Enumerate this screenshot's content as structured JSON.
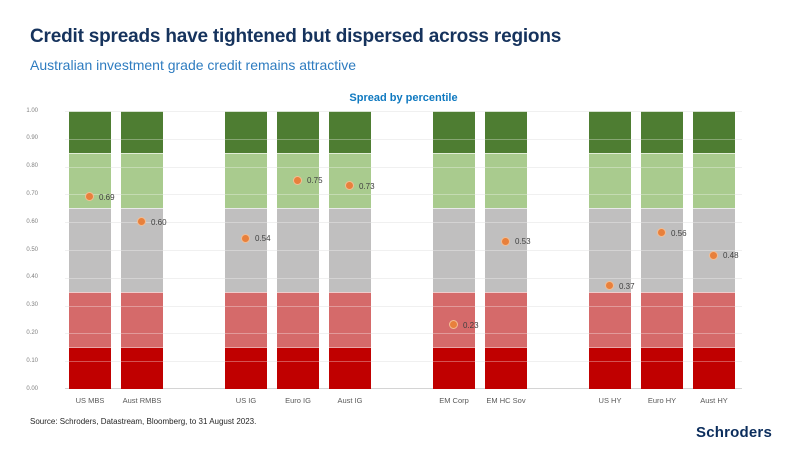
{
  "header": {
    "title": "Credit spreads have tightened but dispersed across regions",
    "subtitle": "Australian investment grade credit remains attractive"
  },
  "theme": {
    "title_color": "#16335d",
    "subtitle_color": "#2e7cc0",
    "chart_title_color": "#0f79c0",
    "logo_color": "#0b2d5c",
    "marker_color": "#e8803c",
    "marker_ring_color": "#f4bd92",
    "band_dark_red": "#c00000",
    "band_light_red": "#d56a6a",
    "band_gray": "#c0bfbf",
    "band_light_green": "#a9cb8e",
    "band_dark_green": "#4e7d32"
  },
  "chart_data": {
    "type": "bar",
    "variant": "stacked-percentile-bands-with-markers",
    "title": "Spread by percentile",
    "ylim": [
      0,
      1
    ],
    "ytick_labels": [
      "0.00",
      "0.10",
      "0.20",
      "0.30",
      "0.40",
      "0.50",
      "0.60",
      "0.70",
      "0.80",
      "0.90",
      "1.00"
    ],
    "grid": true,
    "legend": "none",
    "bands": [
      {
        "from": 0.0,
        "to": 0.15,
        "color": "#c00000"
      },
      {
        "from": 0.15,
        "to": 0.35,
        "color": "#d56a6a"
      },
      {
        "from": 0.35,
        "to": 0.65,
        "color": "#c0bfbf"
      },
      {
        "from": 0.65,
        "to": 0.85,
        "color": "#a9cb8e"
      },
      {
        "from": 0.85,
        "to": 1.0,
        "color": "#4e7d32"
      }
    ],
    "groups": [
      {
        "categories": [
          "US MBS",
          "Aust RMBS"
        ],
        "values": [
          0.69,
          0.6
        ]
      },
      {
        "categories": [
          "US IG",
          "Euro IG",
          "Aust IG"
        ],
        "values": [
          0.54,
          0.75,
          0.73
        ]
      },
      {
        "categories": [
          "EM Corp",
          "EM HC Sov"
        ],
        "values": [
          0.23,
          0.53
        ]
      },
      {
        "categories": [
          "US HY",
          "Euro HY",
          "Aust HY"
        ],
        "values": [
          0.37,
          0.56,
          0.48
        ]
      }
    ]
  },
  "footer": {
    "source": "Source: Schroders, Datastream, Bloomberg, to 31 August 2023."
  },
  "logo": {
    "text": "Schroders"
  }
}
